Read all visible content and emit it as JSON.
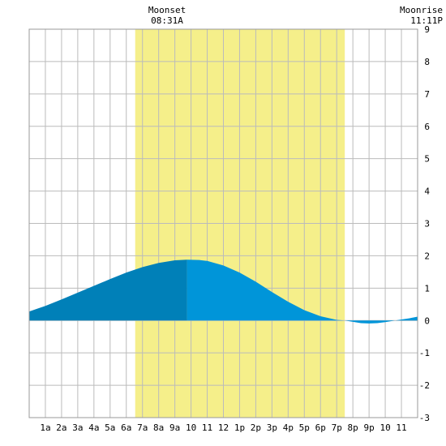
{
  "chart_data": {
    "type": "area",
    "title": "",
    "xlabel": "",
    "ylabel": "",
    "xlim": [
      0,
      24
    ],
    "ylim": [
      -3,
      9
    ],
    "yticks": [
      -3,
      -2,
      -1,
      0,
      1,
      2,
      3,
      4,
      5,
      6,
      7,
      8,
      9
    ],
    "x_tick_labels": [
      "1a",
      "2a",
      "3a",
      "4a",
      "5a",
      "6a",
      "7a",
      "8a",
      "9a",
      "10",
      "11",
      "12",
      "1p",
      "2p",
      "3p",
      "4p",
      "5p",
      "6p",
      "7p",
      "8p",
      "9p",
      "10",
      "11"
    ],
    "grid": true,
    "daylight": {
      "start_hour": 6.55,
      "end_hour": 19.5,
      "color": "#f5ef8a"
    },
    "events": [
      {
        "name": "Moonset",
        "time": "08:31A",
        "hour": 8.52
      },
      {
        "name": "Moonrise",
        "time": "11:11P",
        "hour": 23.18
      }
    ],
    "series": [
      {
        "x": [
          0,
          1,
          2,
          3,
          4,
          5,
          6,
          7,
          8,
          9,
          9.75,
          10.5,
          11,
          12,
          13,
          14,
          15,
          16,
          17,
          18,
          19,
          19.5,
          20,
          20.5,
          21,
          21.5,
          22,
          22.5,
          23,
          23.5,
          24
        ],
        "values": [
          0.28,
          0.45,
          0.65,
          0.86,
          1.07,
          1.28,
          1.48,
          1.65,
          1.78,
          1.86,
          1.88,
          1.87,
          1.84,
          1.7,
          1.48,
          1.2,
          0.88,
          0.58,
          0.32,
          0.13,
          0.02,
          0.0,
          -0.04,
          -0.08,
          -0.09,
          -0.08,
          -0.05,
          -0.01,
          0.03,
          0.07,
          0.12
        ],
        "fill_colors": {
          "rising": "#0080b8",
          "falling": "#0095d9"
        },
        "peak_hour": 9.75
      }
    ]
  }
}
